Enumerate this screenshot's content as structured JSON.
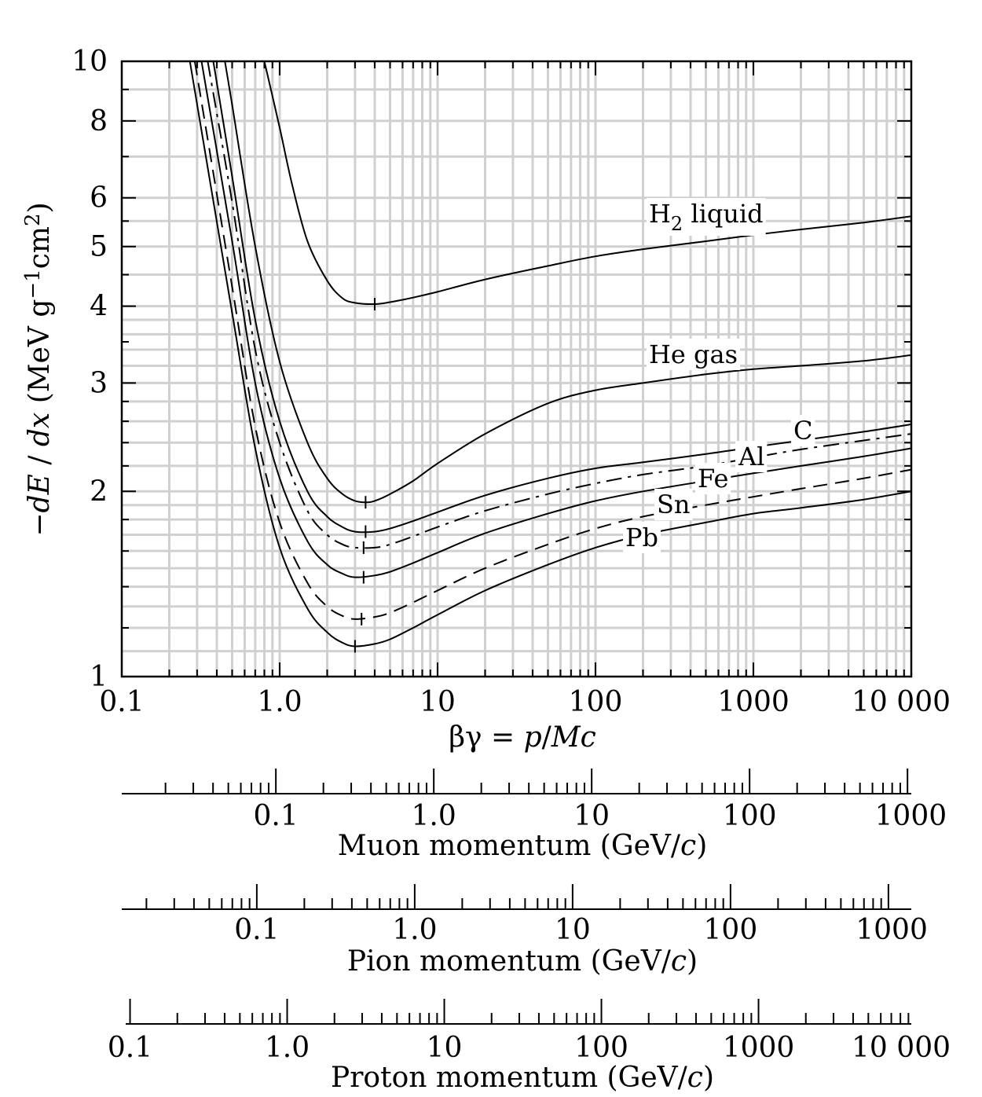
{
  "chart_data": {
    "type": "line",
    "x_scale": "log",
    "y_scale": "log",
    "xlim": [
      0.1,
      10000
    ],
    "ylim": [
      1,
      10
    ],
    "grid": true,
    "ylabel": "−dE / dx (MeV g⁻¹cm²)",
    "xlabel": "βγ = p/Mc",
    "x_ticks": [
      "0.1",
      "1.0",
      "10",
      "100",
      "1000",
      "10 000"
    ],
    "y_ticks": [
      "1",
      "2",
      "3",
      "4",
      "5",
      "6",
      "8",
      "10"
    ],
    "series": [
      {
        "name": "H2 liquid",
        "label_main": "H",
        "label_sub": "2",
        "label_rest": " liquid",
        "style": "solid",
        "points": [
          [
            0.8,
            10.0
          ],
          [
            1.0,
            7.8
          ],
          [
            1.2,
            6.3
          ],
          [
            1.5,
            5.1
          ],
          [
            2.0,
            4.4
          ],
          [
            2.5,
            4.12
          ],
          [
            3.0,
            4.05
          ],
          [
            4.0,
            4.03
          ],
          [
            5.0,
            4.06
          ],
          [
            7.0,
            4.13
          ],
          [
            10,
            4.22
          ],
          [
            20,
            4.42
          ],
          [
            50,
            4.65
          ],
          [
            100,
            4.82
          ],
          [
            200,
            4.95
          ],
          [
            500,
            5.1
          ],
          [
            1000,
            5.22
          ],
          [
            2000,
            5.33
          ],
          [
            5000,
            5.47
          ],
          [
            10000,
            5.6
          ]
        ],
        "minimum": [
          4.0,
          4.03
        ]
      },
      {
        "name": "He gas",
        "style": "solid",
        "points": [
          [
            0.45,
            10.0
          ],
          [
            0.5,
            8.5
          ],
          [
            0.7,
            5.0
          ],
          [
            1.0,
            3.25
          ],
          [
            1.5,
            2.4
          ],
          [
            2.0,
            2.1
          ],
          [
            2.5,
            1.98
          ],
          [
            3.0,
            1.93
          ],
          [
            3.5,
            1.92
          ],
          [
            4.0,
            1.93
          ],
          [
            5.0,
            1.98
          ],
          [
            7.0,
            2.08
          ],
          [
            10,
            2.22
          ],
          [
            20,
            2.48
          ],
          [
            50,
            2.78
          ],
          [
            100,
            2.92
          ],
          [
            200,
            3.0
          ],
          [
            500,
            3.1
          ],
          [
            1000,
            3.16
          ],
          [
            2000,
            3.2
          ],
          [
            5000,
            3.26
          ],
          [
            10000,
            3.33
          ]
        ],
        "minimum": [
          3.5,
          1.92
        ]
      },
      {
        "name": "C",
        "style": "solid",
        "points": [
          [
            0.38,
            10.0
          ],
          [
            0.5,
            6.5
          ],
          [
            0.7,
            3.8
          ],
          [
            1.0,
            2.6
          ],
          [
            1.5,
            2.0
          ],
          [
            2.0,
            1.82
          ],
          [
            2.5,
            1.75
          ],
          [
            3.0,
            1.72
          ],
          [
            4.0,
            1.72
          ],
          [
            5.0,
            1.74
          ],
          [
            7.0,
            1.79
          ],
          [
            10,
            1.85
          ],
          [
            20,
            1.97
          ],
          [
            50,
            2.1
          ],
          [
            100,
            2.18
          ],
          [
            200,
            2.23
          ],
          [
            500,
            2.3
          ],
          [
            1000,
            2.36
          ],
          [
            2000,
            2.42
          ],
          [
            5000,
            2.5
          ],
          [
            10000,
            2.57
          ]
        ],
        "minimum": [
          3.5,
          1.72
        ]
      },
      {
        "name": "Al",
        "style": "dashdot",
        "points": [
          [
            0.35,
            10.0
          ],
          [
            0.5,
            5.9
          ],
          [
            0.7,
            3.4
          ],
          [
            1.0,
            2.4
          ],
          [
            1.5,
            1.86
          ],
          [
            2.0,
            1.7
          ],
          [
            2.5,
            1.64
          ],
          [
            3.0,
            1.62
          ],
          [
            4.0,
            1.62
          ],
          [
            5.0,
            1.64
          ],
          [
            7.0,
            1.69
          ],
          [
            10,
            1.75
          ],
          [
            20,
            1.86
          ],
          [
            50,
            1.98
          ],
          [
            100,
            2.06
          ],
          [
            200,
            2.13
          ],
          [
            500,
            2.2
          ],
          [
            1000,
            2.27
          ],
          [
            2000,
            2.34
          ],
          [
            5000,
            2.42
          ],
          [
            10000,
            2.48
          ]
        ],
        "minimum": [
          3.4,
          1.62
        ]
      },
      {
        "name": "Fe",
        "style": "solid",
        "points": [
          [
            0.32,
            10.0
          ],
          [
            0.5,
            5.1
          ],
          [
            0.7,
            3.0
          ],
          [
            1.0,
            2.1
          ],
          [
            1.5,
            1.66
          ],
          [
            2.0,
            1.52
          ],
          [
            2.5,
            1.47
          ],
          [
            3.0,
            1.45
          ],
          [
            4.0,
            1.46
          ],
          [
            5.0,
            1.48
          ],
          [
            7.0,
            1.53
          ],
          [
            10,
            1.59
          ],
          [
            20,
            1.71
          ],
          [
            50,
            1.84
          ],
          [
            100,
            1.93
          ],
          [
            200,
            2.0
          ],
          [
            500,
            2.08
          ],
          [
            1000,
            2.14
          ],
          [
            2000,
            2.2
          ],
          [
            5000,
            2.28
          ],
          [
            10000,
            2.35
          ]
        ],
        "minimum": [
          3.4,
          1.45
        ]
      },
      {
        "name": "Sn",
        "style": "dashed",
        "points": [
          [
            0.29,
            10.0
          ],
          [
            0.5,
            4.3
          ],
          [
            0.7,
            2.55
          ],
          [
            1.0,
            1.78
          ],
          [
            1.5,
            1.42
          ],
          [
            2.0,
            1.3
          ],
          [
            2.5,
            1.255
          ],
          [
            3.0,
            1.24
          ],
          [
            4.0,
            1.25
          ],
          [
            5.0,
            1.27
          ],
          [
            7.0,
            1.32
          ],
          [
            10,
            1.38
          ],
          [
            20,
            1.5
          ],
          [
            50,
            1.64
          ],
          [
            100,
            1.74
          ],
          [
            200,
            1.82
          ],
          [
            500,
            1.9
          ],
          [
            1000,
            1.96
          ],
          [
            2000,
            2.02
          ],
          [
            5000,
            2.1
          ],
          [
            10000,
            2.17
          ]
        ],
        "minimum": [
          3.3,
          1.24
        ]
      },
      {
        "name": "Pb",
        "style": "solid",
        "points": [
          [
            0.27,
            10.0
          ],
          [
            0.5,
            3.9
          ],
          [
            0.7,
            2.35
          ],
          [
            1.0,
            1.62
          ],
          [
            1.5,
            1.29
          ],
          [
            2.0,
            1.18
          ],
          [
            2.5,
            1.135
          ],
          [
            3.0,
            1.12
          ],
          [
            4.0,
            1.13
          ],
          [
            5.0,
            1.15
          ],
          [
            7.0,
            1.2
          ],
          [
            10,
            1.26
          ],
          [
            20,
            1.38
          ],
          [
            50,
            1.52
          ],
          [
            100,
            1.62
          ],
          [
            200,
            1.7
          ],
          [
            500,
            1.78
          ],
          [
            1000,
            1.84
          ],
          [
            2000,
            1.88
          ],
          [
            5000,
            1.94
          ],
          [
            10000,
            2.0
          ]
        ],
        "minimum": [
          3.0,
          1.12
        ]
      }
    ],
    "secondary_axes": [
      {
        "title": "Muon momentum (GeV/c)",
        "title_main": "Muon momentum (GeV/",
        "title_ital": "c",
        "title_end": ")",
        "ticks": [
          "0.1",
          "1.0",
          "10",
          "100",
          "1000"
        ],
        "tick_values": [
          0.1,
          1,
          10,
          100,
          1000
        ],
        "range": [
          0.01057,
          1057
        ]
      },
      {
        "title": "Pion momentum (GeV/c)",
        "title_main": "Pion momentum (GeV/",
        "title_ital": "c",
        "title_end": ")",
        "ticks": [
          "0.1",
          "1.0",
          "10",
          "100",
          "1000"
        ],
        "tick_values": [
          0.1,
          1,
          10,
          100,
          1000
        ],
        "range": [
          0.01396,
          1396
        ]
      },
      {
        "title": "Proton momentum (GeV/c)",
        "title_main": "Proton momentum (GeV/",
        "title_ital": "c",
        "title_end": ")",
        "ticks": [
          "0.1",
          "1.0",
          "10",
          "100",
          "1000",
          "10 000"
        ],
        "tick_values": [
          0.1,
          1,
          10,
          100,
          1000,
          10000
        ],
        "range": [
          0.09383,
          9383
        ]
      }
    ]
  }
}
